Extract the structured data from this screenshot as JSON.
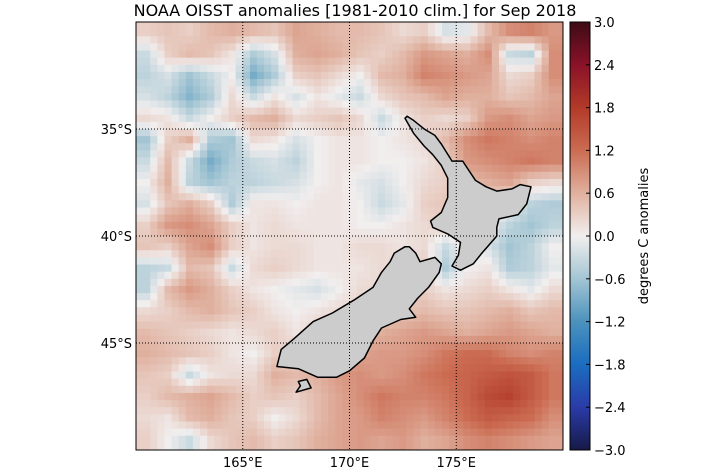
{
  "chart_data": {
    "type": "heatmap",
    "title": "NOAA OISST anomalies [1981-2010 clim.] for Sep 2018",
    "lon_range": [
      160,
      180
    ],
    "lat_range": [
      -50,
      -30
    ],
    "grid_resolution_deg": 1,
    "rows_from_lat": -30,
    "x_ticks": [
      {
        "value": 165,
        "label": "165°E"
      },
      {
        "value": 170,
        "label": "170°E"
      },
      {
        "value": 175,
        "label": "175°E"
      }
    ],
    "y_ticks": [
      {
        "value": -35,
        "label": "35°S"
      },
      {
        "value": -40,
        "label": "40°S"
      },
      {
        "value": -45,
        "label": "45°S"
      }
    ],
    "colorbar": {
      "label": "degrees C anomalies",
      "range": [
        -3.0,
        3.0
      ],
      "ticks": [
        "3.0",
        "2.4",
        "1.8",
        "1.2",
        "0.6",
        "0.0",
        "−0.6",
        "−1.2",
        "−1.8",
        "−2.4",
        "−3.0"
      ],
      "tick_values": [
        3.0,
        2.4,
        1.8,
        1.2,
        0.6,
        0.0,
        -0.6,
        -1.2,
        -1.8,
        -2.4,
        -3.0
      ],
      "colors": [
        {
          "v": -3.0,
          "c": "#161a47"
        },
        {
          "v": -2.4,
          "c": "#2a3ba8"
        },
        {
          "v": -1.8,
          "c": "#1a6dc0"
        },
        {
          "v": -1.2,
          "c": "#4b92bd"
        },
        {
          "v": -0.6,
          "c": "#a3c5d3"
        },
        {
          "v": 0.0,
          "c": "#f1eeee"
        },
        {
          "v": 0.6,
          "c": "#e0b09e"
        },
        {
          "v": 1.2,
          "c": "#cb6c52"
        },
        {
          "v": 1.8,
          "c": "#b23a28"
        },
        {
          "v": 2.4,
          "c": "#8a1228"
        },
        {
          "v": 3.0,
          "c": "#3e0b16"
        }
      ]
    },
    "land_color": "#cccccc",
    "values": [
      [
        0.3,
        0.4,
        0.3,
        0.5,
        0.6,
        0.5,
        0.4,
        0.7,
        0.6,
        0.5,
        0.5,
        0.4,
        0.2,
        0.3,
        -0.2,
        -0.1,
        0.5,
        0.9,
        1.0,
        0.8
      ],
      [
        -0.3,
        0.3,
        0.5,
        0.4,
        0.1,
        -0.5,
        -0.2,
        0.6,
        0.7,
        0.6,
        0.4,
        0.3,
        0.5,
        0.8,
        0.7,
        0.6,
        0.9,
        -0.3,
        -0.4,
        0.9
      ],
      [
        -0.4,
        -0.2,
        -0.6,
        -0.3,
        0.0,
        -0.9,
        -0.5,
        0.3,
        0.4,
        0.2,
        0.0,
        0.5,
        0.6,
        1.0,
        0.9,
        0.8,
        0.7,
        0.2,
        0.3,
        0.9
      ],
      [
        -0.2,
        -0.4,
        -0.8,
        -0.5,
        0.2,
        -0.3,
        0.1,
        -0.2,
        0.1,
        -0.1,
        -0.3,
        0.2,
        0.4,
        0.5,
        0.7,
        0.6,
        0.6,
        0.4,
        0.5,
        0.7
      ],
      [
        0.2,
        0.1,
        -0.3,
        0.0,
        0.3,
        0.5,
        0.6,
        0.2,
        0.3,
        0.4,
        0.2,
        -0.3,
        0.1,
        0.3,
        0.2,
        0.3,
        0.8,
        0.9,
        0.7,
        0.8
      ],
      [
        -0.6,
        0.3,
        0.6,
        -0.5,
        -0.6,
        0.2,
        0.1,
        -0.2,
        0.0,
        0.1,
        0.1,
        0.0,
        0.1,
        0.2,
        0.5,
        0.9,
        1.1,
        1.0,
        0.9,
        1.0
      ],
      [
        -0.3,
        0.5,
        -0.3,
        -0.9,
        -0.5,
        -0.3,
        -0.2,
        -0.4,
        0.0,
        0.1,
        0.1,
        0.0,
        0.0,
        0.1,
        0.3,
        0.8,
        0.9,
        1.0,
        1.1,
        1.0
      ],
      [
        0.0,
        0.6,
        -0.4,
        -0.6,
        -0.4,
        -0.4,
        -0.3,
        -0.2,
        0.0,
        0.1,
        -0.1,
        -0.2,
        0.0,
        0.2,
        0.3,
        0.5,
        0.6,
        0.7,
        0.3,
        0.2
      ],
      [
        -0.2,
        0.4,
        0.6,
        0.3,
        -0.5,
        0.1,
        0.1,
        0.0,
        0.1,
        0.1,
        0.0,
        -0.3,
        -0.1,
        0.3,
        0.4,
        0.4,
        0.3,
        0.0,
        -0.4,
        -0.5
      ],
      [
        0.3,
        0.8,
        0.9,
        0.7,
        0.3,
        0.1,
        0.2,
        0.1,
        0.1,
        0.1,
        0.0,
        0.0,
        0.1,
        0.2,
        0.3,
        0.2,
        0.0,
        -0.4,
        -0.6,
        -0.4
      ],
      [
        0.4,
        0.3,
        0.7,
        0.9,
        0.3,
        0.1,
        0.2,
        0.2,
        0.1,
        0.1,
        0.2,
        0.2,
        0.1,
        0.2,
        -0.3,
        0.1,
        -0.2,
        -0.6,
        -0.4,
        0.0
      ],
      [
        -0.4,
        -0.3,
        0.5,
        0.4,
        -0.3,
        0.2,
        0.3,
        0.2,
        0.1,
        0.1,
        0.1,
        0.2,
        0.2,
        0.3,
        -0.5,
        0.0,
        0.1,
        -0.5,
        -0.4,
        -0.1
      ],
      [
        -0.4,
        0.5,
        0.8,
        0.6,
        0.3,
        0.1,
        0.0,
        -0.1,
        -0.2,
        0.0,
        0.2,
        0.2,
        0.3,
        0.3,
        0.1,
        0.2,
        0.3,
        0.1,
        -0.1,
        0.2
      ],
      [
        0.2,
        0.3,
        0.5,
        0.6,
        0.4,
        0.3,
        0.1,
        0.0,
        0.1,
        0.2,
        0.3,
        0.3,
        0.4,
        0.5,
        0.4,
        0.4,
        0.5,
        0.6,
        0.4,
        0.5
      ],
      [
        0.5,
        0.4,
        0.3,
        0.2,
        0.1,
        0.2,
        0.3,
        0.1,
        0.3,
        0.4,
        0.5,
        0.6,
        0.7,
        0.8,
        0.7,
        0.6,
        0.7,
        0.8,
        0.7,
        0.6
      ],
      [
        0.6,
        0.5,
        0.4,
        0.3,
        0.1,
        0.0,
        0.3,
        0.3,
        0.5,
        0.6,
        0.7,
        0.8,
        0.8,
        0.9,
        1.1,
        1.2,
        1.2,
        1.0,
        0.9,
        1.0
      ],
      [
        0.4,
        0.3,
        -0.3,
        0.1,
        0.2,
        0.2,
        0.6,
        0.5,
        0.6,
        0.8,
        0.9,
        0.8,
        0.9,
        1.1,
        1.2,
        1.3,
        1.4,
        1.5,
        1.4,
        1.1
      ],
      [
        0.3,
        0.5,
        0.6,
        0.7,
        0.5,
        0.3,
        0.4,
        0.3,
        0.5,
        0.7,
        0.9,
        1.1,
        1.0,
        1.0,
        1.1,
        1.3,
        1.6,
        1.7,
        1.4,
        1.1
      ],
      [
        0.2,
        0.1,
        0.5,
        0.6,
        0.4,
        0.3,
        0.0,
        0.2,
        0.5,
        0.7,
        0.8,
        1.0,
        0.9,
        0.8,
        1.0,
        1.2,
        1.4,
        1.3,
        1.2,
        0.9
      ],
      [
        0.3,
        0.0,
        -0.3,
        0.2,
        0.4,
        0.5,
        0.3,
        0.4,
        0.6,
        0.7,
        0.8,
        0.7,
        0.8,
        0.6,
        0.7,
        0.9,
        1.0,
        0.9,
        0.8,
        0.7
      ]
    ]
  }
}
